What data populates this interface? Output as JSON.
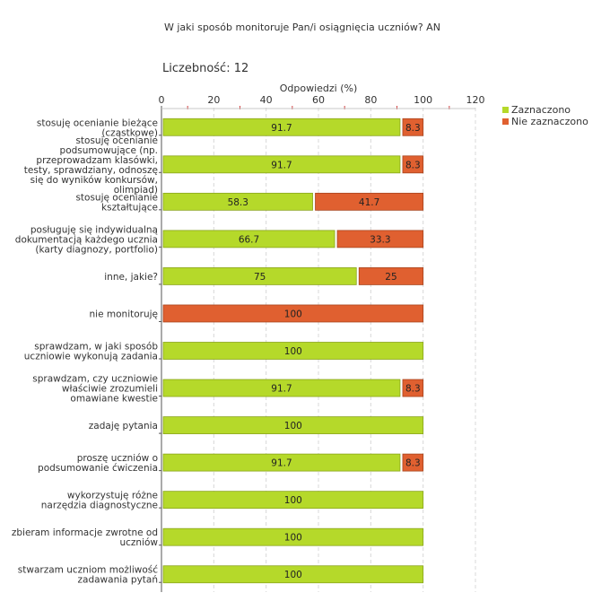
{
  "chart_data": {
    "type": "bar",
    "orientation": "horizontal",
    "stacked": true,
    "title": "W jaki sposób monitoruje Pan/i osiągnięcia uczniów?  AN",
    "subtitle": "Liczebność:  12",
    "xlabel": "Odpowiedzi (%)",
    "xlim": [
      0,
      120
    ],
    "xticks": [
      "0",
      "20",
      "40",
      "60",
      "80",
      "100",
      "120"
    ],
    "legend_position": "top-right",
    "categories": [
      [
        "stosuję ocenianie bieżące",
        "(cząstkowe)"
      ],
      [
        "stosuję ocenianie",
        "podsumowujące (np.",
        "przeprowadzam klasówki,",
        "testy, sprawdziany, odnoszę",
        "się do wyników konkursów,",
        "olimpiad)"
      ],
      [
        "stosuję ocenianie",
        "kształtujące"
      ],
      [
        "posługuję się indywidualną",
        "dokumentacją każdego ucznia",
        "(karty diagnozy, portfolio)"
      ],
      [
        "inne, jakie?"
      ],
      [
        "nie monitoruję"
      ],
      [
        "sprawdzam, w jaki sposób",
        "uczniowie wykonują zadania"
      ],
      [
        "sprawdzam, czy uczniowie",
        "właściwie zrozumieli",
        "omawiane kwestie"
      ],
      [
        "zadaję pytania"
      ],
      [
        "proszę uczniów o",
        "podsumowanie ćwiczenia"
      ],
      [
        "wykorzystuję różne",
        "narzędzia diagnostyczne"
      ],
      [
        "zbieram informacje zwrotne od",
        "uczniów"
      ],
      [
        "stwarzam uczniom możliwość",
        "zadawania pytań"
      ]
    ],
    "series": [
      {
        "name": "Zaznaczono",
        "color": "#b5d92a",
        "values": [
          91.7,
          91.7,
          58.3,
          66.7,
          75,
          0,
          100,
          91.7,
          100,
          91.7,
          100,
          100,
          100
        ],
        "labels": [
          "91.7",
          "91.7",
          "58.3",
          "66.7",
          "75",
          "",
          "100",
          "91.7",
          "100",
          "91.7",
          "100",
          "100",
          "100"
        ]
      },
      {
        "name": "Nie zaznaczono",
        "color": "#e06030",
        "values": [
          8.3,
          8.3,
          41.7,
          33.3,
          25,
          100,
          0,
          8.3,
          0,
          8.3,
          0,
          0,
          0
        ],
        "labels": [
          "8.3",
          "8.3",
          "41.7",
          "33.3",
          "25",
          "100",
          "",
          "8.3",
          "",
          "8.3",
          "",
          "",
          ""
        ]
      }
    ]
  }
}
